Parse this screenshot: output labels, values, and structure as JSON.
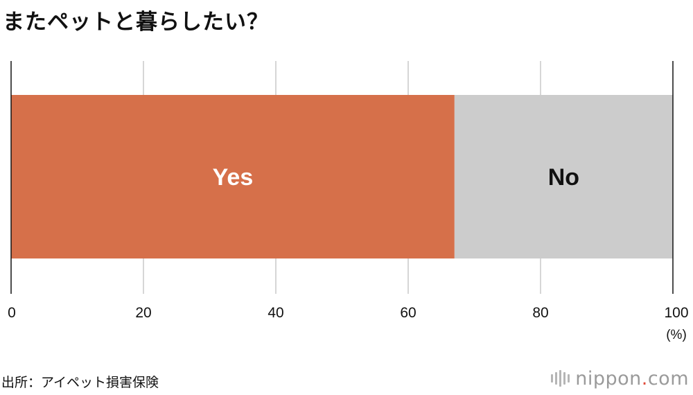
{
  "title": "またペットと暮らしたい？",
  "source": "出所：アイペット損害保険",
  "brand": {
    "name": "nippon",
    "dot": ".",
    "suffix": "com"
  },
  "chart_data": {
    "type": "bar",
    "orientation": "horizontal",
    "stacked": true,
    "title": "またペットと暮らしたい？",
    "xlim": [
      0,
      100
    ],
    "xticks": [
      "0",
      "20",
      "40",
      "60",
      "80",
      "100"
    ],
    "unit": "(%)",
    "grid": true,
    "series": [
      {
        "name": "Yes",
        "value": 67,
        "color": "#d6704a",
        "label_color": "#ffffff"
      },
      {
        "name": "No",
        "value": 33,
        "color": "#cccccc",
        "label_color": "#111111"
      }
    ]
  }
}
